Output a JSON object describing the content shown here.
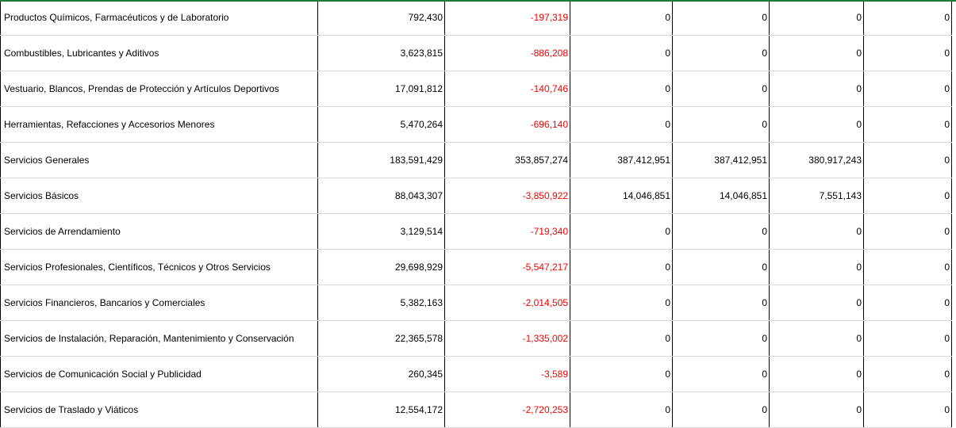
{
  "rows": [
    {
      "label": "Productos Químicos, Farmacéuticos y de Laboratorio",
      "values": [
        "792,430",
        "-197,319",
        "0",
        "0",
        "0",
        "0"
      ]
    },
    {
      "label": "Combustibles, Lubricantes y Aditivos",
      "values": [
        "3,623,815",
        "-886,208",
        "0",
        "0",
        "0",
        "0"
      ]
    },
    {
      "label": "Vestuario, Blancos, Prendas de Protección y Artículos Deportivos",
      "values": [
        "17,091,812",
        "-140,746",
        "0",
        "0",
        "0",
        "0"
      ]
    },
    {
      "label": "Herramientas, Refacciones y Accesorios Menores",
      "values": [
        "5,470,264",
        "-696,140",
        "0",
        "0",
        "0",
        "0"
      ]
    },
    {
      "label": "Servicios Generales",
      "values": [
        "183,591,429",
        "353,857,274",
        "387,412,951",
        "387,412,951",
        "380,917,243",
        "0"
      ]
    },
    {
      "label": "Servicios Básicos",
      "values": [
        "88,043,307",
        "-3,850,922",
        "14,046,851",
        "14,046,851",
        "7,551,143",
        "0"
      ]
    },
    {
      "label": "Servicios de Arrendamiento",
      "values": [
        "3,129,514",
        "-719,340",
        "0",
        "0",
        "0",
        "0"
      ]
    },
    {
      "label": "Servicios Profesionales, Científicos, Técnicos y Otros Servicios",
      "values": [
        "29,698,929",
        "-5,547,217",
        "0",
        "0",
        "0",
        "0"
      ]
    },
    {
      "label": "Servicios Financieros, Bancarios y Comerciales",
      "values": [
        "5,382,163",
        "-2,014,505",
        "0",
        "0",
        "0",
        "0"
      ]
    },
    {
      "label": "Servicios de Instalación, Reparación, Mantenimiento y Conservación",
      "values": [
        "22,365,578",
        "-1,335,002",
        "0",
        "0",
        "0",
        "0"
      ]
    },
    {
      "label": "Servicios de Comunicación Social y Publicidad",
      "values": [
        "260,345",
        "-3,589",
        "0",
        "0",
        "0",
        "0"
      ]
    },
    {
      "label": "Servicios de Traslado y Viáticos",
      "values": [
        "12,554,172",
        "-2,720,253",
        "0",
        "0",
        "0",
        "0"
      ]
    }
  ],
  "colors": {
    "negative": "#ff0000",
    "border": "#000000",
    "gridline": "#d9d9d9",
    "top_accent": "#1f7a3a"
  }
}
